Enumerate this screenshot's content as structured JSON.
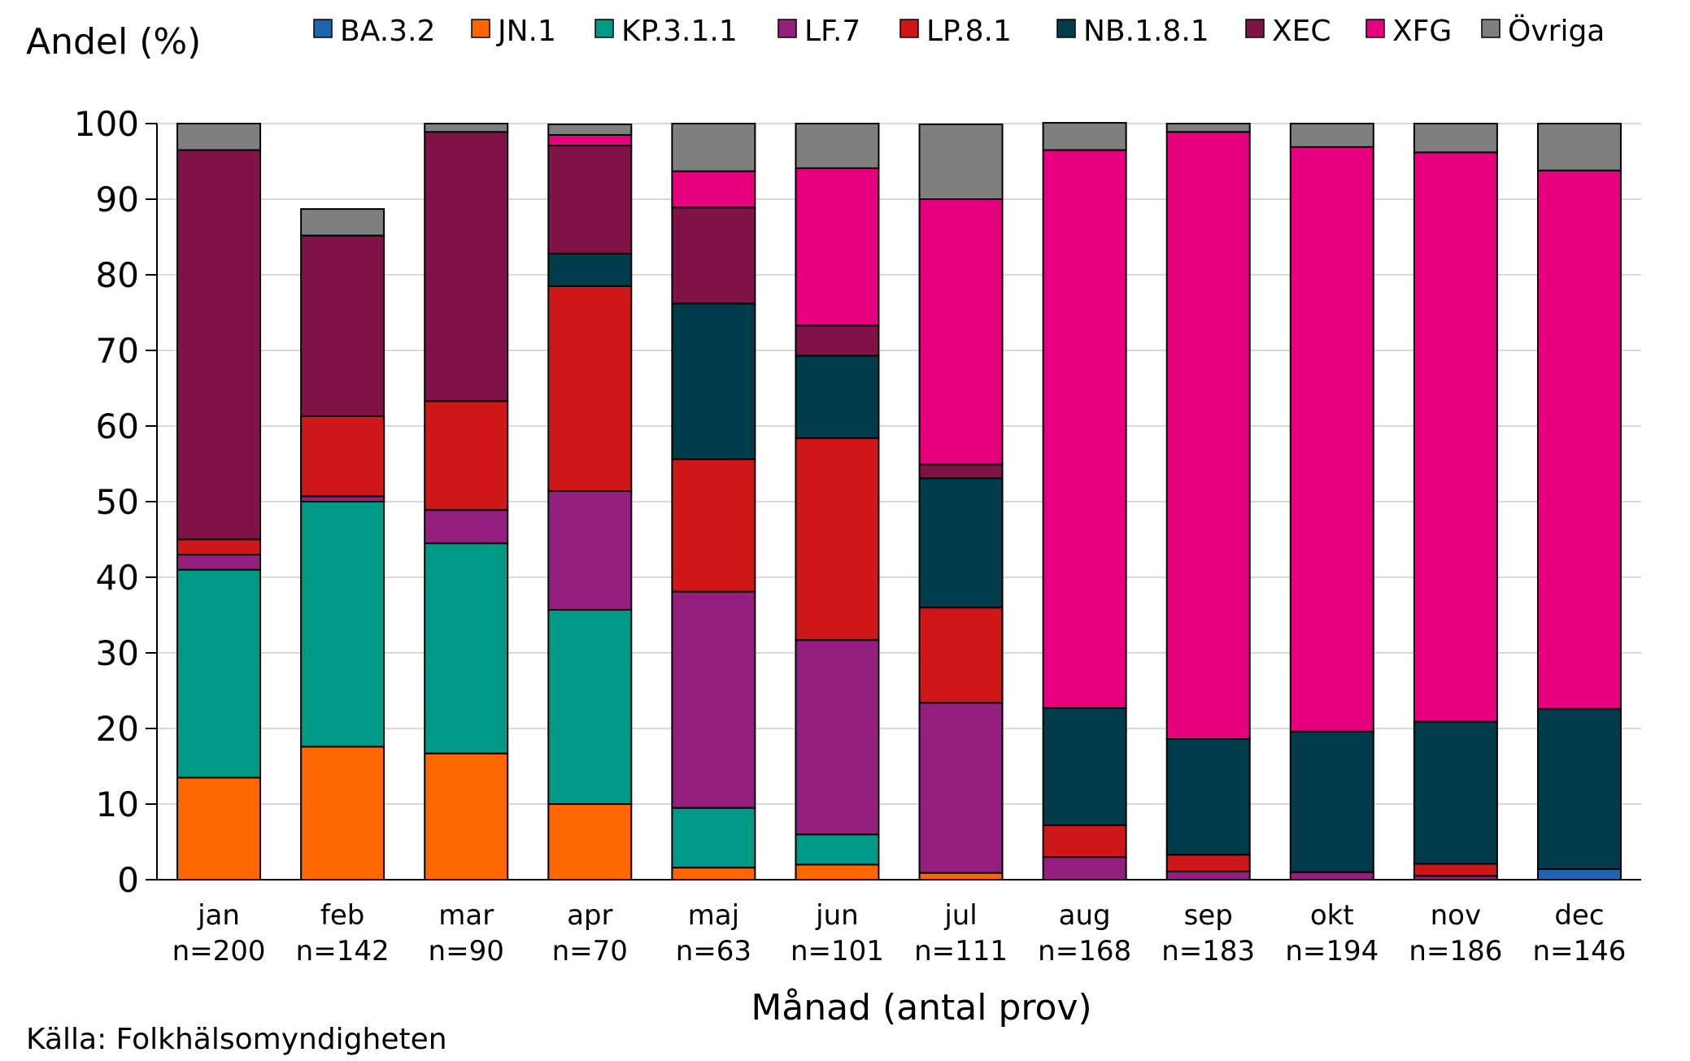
{
  "chart_data": {
    "type": "bar",
    "stacked": true,
    "ylabel": "Andel (%)",
    "xlabel": "Månad (antal prov)",
    "ylim": [
      0,
      100
    ],
    "yticks": [
      0,
      10,
      20,
      30,
      40,
      50,
      60,
      70,
      80,
      90,
      100
    ],
    "grid": "horizontal",
    "legend_position": "top",
    "categories": [
      "jan",
      "feb",
      "mar",
      "apr",
      "maj",
      "jun",
      "jul",
      "aug",
      "sep",
      "okt",
      "nov",
      "dec"
    ],
    "sample_counts": [
      "n=200",
      "n=142",
      "n=90",
      "n=70",
      "n=63",
      "n=101",
      "n=111",
      "n=168",
      "n=183",
      "n=194",
      "n=186",
      "n=146"
    ],
    "series": [
      {
        "name": "BA.3.2",
        "color": "#1F64AE",
        "values": [
          0,
          0,
          0,
          0,
          0,
          0,
          0,
          0,
          0,
          0,
          0,
          1.4
        ]
      },
      {
        "name": "JN.1",
        "color": "#FF6600",
        "values": [
          13.5,
          17.6,
          16.7,
          10.0,
          1.6,
          2.0,
          0.9,
          0,
          0,
          0,
          0,
          0
        ]
      },
      {
        "name": "KP.3.1.1",
        "color": "#009985",
        "values": [
          27.5,
          32.4,
          27.8,
          25.7,
          7.9,
          4.0,
          0,
          0,
          0,
          0,
          0,
          0
        ]
      },
      {
        "name": "LF.7",
        "color": "#951F7F",
        "values": [
          2.0,
          0,
          4.4,
          15.7,
          28.6,
          25.7,
          22.5,
          3.0,
          1.1,
          1.0,
          0.5,
          0
        ]
      },
      {
        "name": "LP.8.1",
        "color": "#CD1719",
        "values": [
          2.0,
          0,
          14.4,
          27.1,
          17.5,
          26.7,
          12.6,
          4.2,
          2.2,
          0,
          1.6,
          0
        ]
      },
      {
        "name": "NB.1.8.1",
        "color": "#003C4B",
        "values": [
          0,
          0,
          0,
          4.3,
          20.6,
          10.9,
          17.1,
          15.5,
          15.3,
          18.6,
          18.8,
          21.2
        ]
      },
      {
        "name": "XEC",
        "color": "#7F1246",
        "values": [
          51.5,
          35.2,
          35.6,
          14.3,
          12.7,
          4.0,
          1.8,
          0,
          0,
          0,
          0,
          0
        ]
      },
      {
        "name": "XFG",
        "color": "#E6007E",
        "values": [
          0,
          0,
          0,
          1.4,
          4.8,
          20.8,
          35.1,
          73.8,
          80.3,
          77.3,
          75.3,
          71.2
        ]
      },
      {
        "name": "Övriga",
        "color": "#7F7F7F",
        "values": [
          3.5,
          3.5,
          1.1,
          1.4,
          6.3,
          5.9,
          9.9,
          3.6,
          1.1,
          3.1,
          3.8,
          6.2
        ]
      }
    ],
    "extra_segments": [
      {
        "category_index": 1,
        "color": "#951F7F",
        "bottom": 50.0,
        "value": 0.7
      },
      {
        "category_index": 1,
        "color": "#CD1719",
        "bottom": 50.7,
        "value": 10.6
      }
    ]
  },
  "source": "Källa: Folkhälsomyndigheten"
}
